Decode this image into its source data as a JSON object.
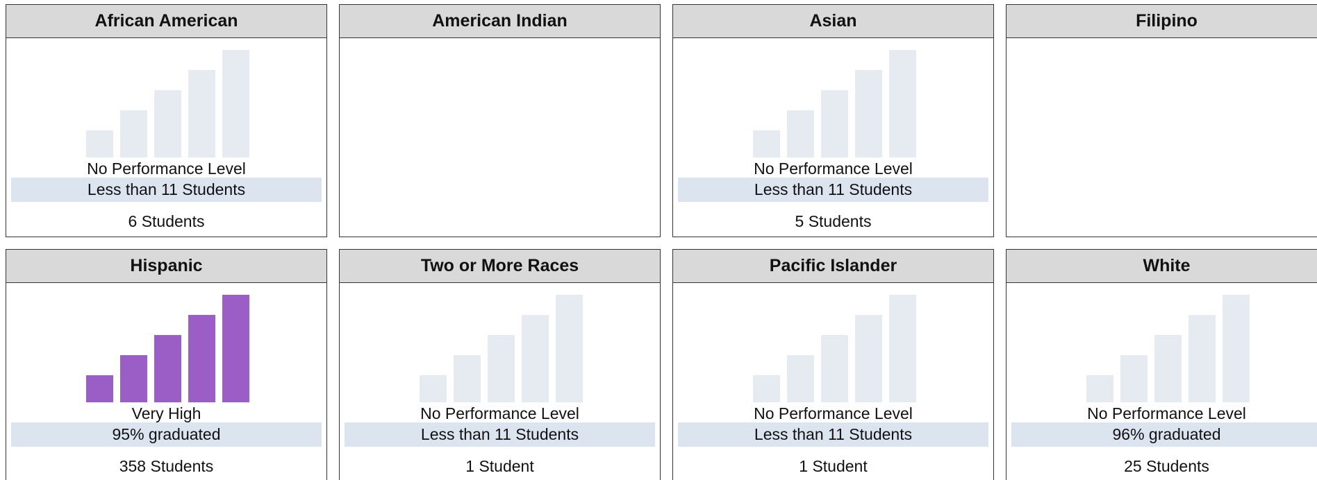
{
  "cards": [
    {
      "name": "African American",
      "bar_color": "#e6eaf1",
      "level": "No Performance Level",
      "note": "Less than 11 Students",
      "students": "6 Students"
    },
    {
      "name": "American Indian"
    },
    {
      "name": "Asian",
      "bar_color": "#e6eaf1",
      "level": "No Performance Level",
      "note": "Less than 11 Students",
      "students": "5 Students"
    },
    {
      "name": "Filipino"
    },
    {
      "name": "Hispanic",
      "bar_color": "#9a5ec6",
      "level": "Very High",
      "note": "95% graduated",
      "students": "358 Students"
    },
    {
      "name": "Two or More Races",
      "bar_color": "#e6eaf1",
      "level": "No Performance Level",
      "note": "Less than 11 Students",
      "students": "1 Student"
    },
    {
      "name": "Pacific Islander",
      "bar_color": "#e6eaf1",
      "level": "No Performance Level",
      "note": "Less than 11 Students",
      "students": "1 Student"
    },
    {
      "name": "White",
      "bar_color": "#e6eaf1",
      "level": "No Performance Level",
      "note": "96% graduated",
      "students": "25 Students"
    }
  ]
}
